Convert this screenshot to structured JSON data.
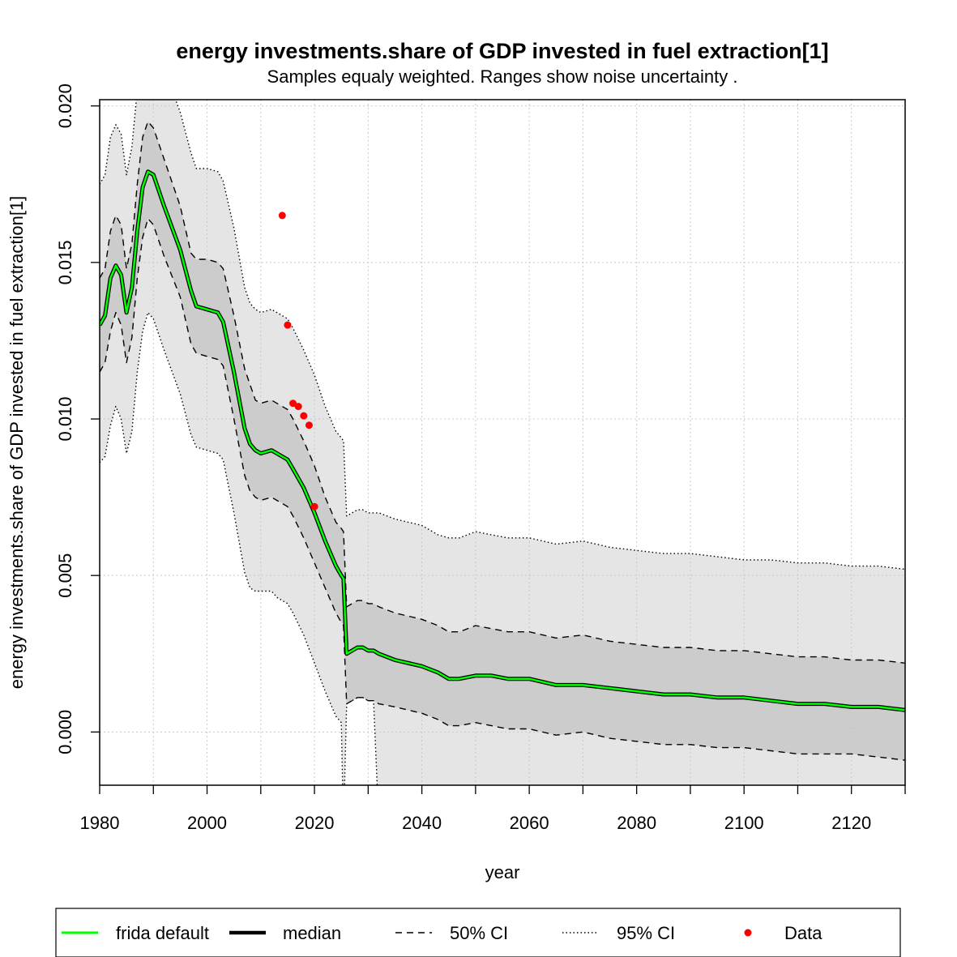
{
  "chart_data": {
    "type": "line",
    "title": "energy investments.share of GDP invested in fuel extraction[1]",
    "subtitle": "Samples equaly weighted. Ranges show  noise uncertainty .",
    "xlabel": "year",
    "ylabel": "energy investments.share of GDP invested in fuel extraction[1]",
    "xlim": [
      1980,
      2130
    ],
    "ylim": [
      -0.0017,
      0.0202
    ],
    "x_ticks": [
      "1980",
      "2000",
      "2020",
      "2040",
      "2060",
      "2080",
      "2100",
      "2120"
    ],
    "y_ticks": [
      "0.000",
      "0.005",
      "0.010",
      "0.015",
      "0.020"
    ],
    "grid": true,
    "legend": {
      "position": "bottom",
      "entries": [
        {
          "label": "frida default",
          "style": "solid",
          "color": "#00ff00"
        },
        {
          "label": "median",
          "style": "solid-thick",
          "color": "#000000"
        },
        {
          "label": "50% CI",
          "style": "dashed",
          "color": "#000000"
        },
        {
          "label": "95% CI",
          "style": "dotted",
          "color": "#000000"
        },
        {
          "label": "Data",
          "style": "point",
          "color": "#ff0000"
        }
      ]
    },
    "colors": {
      "frida_default": "#00ff00",
      "median": "#000000",
      "band_95": "#e5e5e5",
      "band_50": "#cccccc",
      "data_points": "#ff0000",
      "grid": "#c8c8c8"
    },
    "series": [
      {
        "name": "frida default",
        "x": [
          1980,
          1981,
          1982,
          1983,
          1984,
          1985,
          1986,
          1987,
          1988,
          1989,
          1990,
          1992,
          1995,
          1997,
          1998,
          2000,
          2002,
          2003,
          2005,
          2007,
          2008,
          2009,
          2010,
          2012,
          2013,
          2014,
          2015,
          2016,
          2018,
          2020,
          2022,
          2024,
          2025,
          2025.4,
          2026,
          2027,
          2028,
          2029,
          2030,
          2031,
          2032,
          2035,
          2040,
          2043,
          2045,
          2047,
          2050,
          2053,
          2056,
          2060,
          2065,
          2070,
          2075,
          2080,
          2085,
          2090,
          2095,
          2100,
          2105,
          2110,
          2115,
          2120,
          2125,
          2130
        ],
        "values": [
          0.013,
          0.0133,
          0.0145,
          0.0149,
          0.0146,
          0.0134,
          0.0142,
          0.016,
          0.0174,
          0.0179,
          0.0178,
          0.0168,
          0.0154,
          0.0141,
          0.0136,
          0.0135,
          0.0134,
          0.0131,
          0.0115,
          0.0097,
          0.0092,
          0.009,
          0.0089,
          0.009,
          0.0089,
          0.0088,
          0.0087,
          0.0084,
          0.0078,
          0.007,
          0.0061,
          0.0053,
          0.005,
          0.0049,
          0.0025,
          0.0026,
          0.0027,
          0.0027,
          0.0026,
          0.0026,
          0.0025,
          0.0023,
          0.0021,
          0.0019,
          0.0017,
          0.0017,
          0.0018,
          0.0018,
          0.0017,
          0.0017,
          0.0015,
          0.0015,
          0.0014,
          0.0013,
          0.0012,
          0.0012,
          0.0011,
          0.0011,
          0.001,
          0.0009,
          0.0009,
          0.0008,
          0.0008,
          0.0007
        ]
      },
      {
        "name": "median",
        "x": [
          1980,
          1981,
          1982,
          1983,
          1984,
          1985,
          1986,
          1987,
          1988,
          1989,
          1990,
          1992,
          1995,
          1997,
          1998,
          2000,
          2002,
          2003,
          2005,
          2007,
          2008,
          2009,
          2010,
          2012,
          2013,
          2014,
          2015,
          2016,
          2018,
          2020,
          2022,
          2024,
          2025,
          2025.4,
          2026,
          2027,
          2028,
          2029,
          2030,
          2031,
          2032,
          2035,
          2040,
          2043,
          2045,
          2047,
          2050,
          2053,
          2056,
          2060,
          2065,
          2070,
          2075,
          2080,
          2085,
          2090,
          2095,
          2100,
          2105,
          2110,
          2115,
          2120,
          2125,
          2130
        ],
        "values": [
          0.013,
          0.0133,
          0.0145,
          0.0149,
          0.0146,
          0.0134,
          0.0142,
          0.016,
          0.0174,
          0.0179,
          0.0178,
          0.0168,
          0.0154,
          0.0141,
          0.0136,
          0.0135,
          0.0134,
          0.0131,
          0.0115,
          0.0097,
          0.0092,
          0.009,
          0.0089,
          0.009,
          0.0089,
          0.0088,
          0.0087,
          0.0084,
          0.0078,
          0.007,
          0.0061,
          0.0053,
          0.005,
          0.0049,
          0.0025,
          0.0026,
          0.0027,
          0.0027,
          0.0026,
          0.0026,
          0.0025,
          0.0023,
          0.0021,
          0.0019,
          0.0017,
          0.0017,
          0.0018,
          0.0018,
          0.0017,
          0.0017,
          0.0015,
          0.0015,
          0.0014,
          0.0013,
          0.0012,
          0.0012,
          0.0011,
          0.0011,
          0.001,
          0.0009,
          0.0009,
          0.0008,
          0.0008,
          0.0007
        ]
      },
      {
        "name": "50% CI upper",
        "x": [
          1980,
          1981,
          1982,
          1983,
          1984,
          1985,
          1986,
          1987,
          1988,
          1989,
          1990,
          1992,
          1995,
          1997,
          1998,
          2000,
          2002,
          2003,
          2005,
          2007,
          2008,
          2009,
          2010,
          2012,
          2013,
          2014,
          2015,
          2016,
          2018,
          2020,
          2022,
          2024,
          2025,
          2025.4,
          2026,
          2027,
          2028,
          2029,
          2030,
          2031,
          2032,
          2035,
          2040,
          2043,
          2045,
          2047,
          2050,
          2053,
          2056,
          2060,
          2065,
          2070,
          2075,
          2080,
          2085,
          2090,
          2095,
          2100,
          2105,
          2110,
          2115,
          2120,
          2125,
          2130
        ],
        "values": [
          0.0145,
          0.0148,
          0.016,
          0.0165,
          0.0162,
          0.0148,
          0.0156,
          0.0175,
          0.019,
          0.0195,
          0.0193,
          0.0183,
          0.0168,
          0.0153,
          0.0151,
          0.0151,
          0.015,
          0.0148,
          0.0133,
          0.0116,
          0.0111,
          0.0106,
          0.0105,
          0.0106,
          0.0105,
          0.0104,
          0.0103,
          0.01,
          0.0093,
          0.0085,
          0.0075,
          0.0067,
          0.0065,
          0.0064,
          0.004,
          0.0041,
          0.0042,
          0.0042,
          0.0041,
          0.0041,
          0.004,
          0.0038,
          0.0036,
          0.0034,
          0.0032,
          0.0032,
          0.0034,
          0.0033,
          0.0032,
          0.0032,
          0.003,
          0.0031,
          0.0029,
          0.0028,
          0.0027,
          0.0027,
          0.0026,
          0.0026,
          0.0025,
          0.0024,
          0.0024,
          0.0023,
          0.0023,
          0.0022
        ]
      },
      {
        "name": "50% CI lower",
        "x": [
          1980,
          1981,
          1982,
          1983,
          1984,
          1985,
          1986,
          1987,
          1988,
          1989,
          1990,
          1992,
          1995,
          1997,
          1998,
          2000,
          2002,
          2003,
          2005,
          2007,
          2008,
          2009,
          2010,
          2012,
          2013,
          2014,
          2015,
          2016,
          2018,
          2020,
          2022,
          2024,
          2025,
          2025.4,
          2026,
          2027,
          2028,
          2029,
          2030,
          2031,
          2032,
          2035,
          2040,
          2043,
          2045,
          2047,
          2050,
          2053,
          2056,
          2060,
          2065,
          2070,
          2075,
          2080,
          2085,
          2090,
          2095,
          2100,
          2105,
          2110,
          2115,
          2120,
          2125,
          2130
        ],
        "values": [
          0.0115,
          0.0118,
          0.0128,
          0.0134,
          0.013,
          0.0118,
          0.0126,
          0.0145,
          0.0158,
          0.0164,
          0.0162,
          0.0152,
          0.0139,
          0.0124,
          0.0121,
          0.012,
          0.0119,
          0.0117,
          0.01,
          0.0082,
          0.0077,
          0.0075,
          0.0074,
          0.0075,
          0.0074,
          0.0073,
          0.0072,
          0.0069,
          0.0062,
          0.0054,
          0.0046,
          0.0038,
          0.0035,
          0.0034,
          0.0009,
          0.001,
          0.0011,
          0.0011,
          0.001,
          0.001,
          0.0009,
          0.0008,
          0.0006,
          0.0004,
          0.0002,
          0.0002,
          0.0003,
          0.0002,
          0.0001,
          0.0001,
          -0.0001,
          0.0,
          -0.0002,
          -0.0003,
          -0.0004,
          -0.0004,
          -0.0005,
          -0.0005,
          -0.0006,
          -0.0007,
          -0.0007,
          -0.0007,
          -0.0008,
          -0.0009
        ]
      },
      {
        "name": "95% CI upper",
        "x": [
          1980,
          1981,
          1982,
          1983,
          1984,
          1985,
          1986,
          1987,
          1988,
          1989,
          1990,
          1992,
          1995,
          1997,
          1998,
          2000,
          2002,
          2003,
          2005,
          2007,
          2008,
          2009,
          2010,
          2012,
          2013,
          2014,
          2015,
          2016,
          2018,
          2020,
          2022,
          2024,
          2025,
          2025.4,
          2026,
          2027,
          2028,
          2029,
          2030,
          2031,
          2032,
          2035,
          2040,
          2043,
          2045,
          2047,
          2050,
          2053,
          2056,
          2060,
          2065,
          2070,
          2075,
          2080,
          2085,
          2090,
          2095,
          2100,
          2105,
          2110,
          2115,
          2120,
          2125,
          2130
        ],
        "values": [
          0.0175,
          0.0178,
          0.019,
          0.0194,
          0.0191,
          0.0178,
          0.0187,
          0.0205,
          0.0218,
          0.0223,
          0.0222,
          0.0212,
          0.0198,
          0.0185,
          0.018,
          0.018,
          0.0179,
          0.0176,
          0.0161,
          0.0142,
          0.0137,
          0.0135,
          0.0134,
          0.0135,
          0.0134,
          0.0133,
          0.0132,
          0.0129,
          0.0122,
          0.0114,
          0.0104,
          0.0096,
          0.0094,
          0.0093,
          0.0069,
          0.007,
          0.0071,
          0.0071,
          0.007,
          0.007,
          0.007,
          0.0068,
          0.0066,
          0.0063,
          0.0062,
          0.0062,
          0.0064,
          0.0063,
          0.0062,
          0.0062,
          0.006,
          0.0061,
          0.0059,
          0.0058,
          0.0057,
          0.0057,
          0.0056,
          0.0055,
          0.0055,
          0.0054,
          0.0054,
          0.0053,
          0.0053,
          0.0052
        ]
      },
      {
        "name": "95% CI lower",
        "x": [
          1980,
          1981,
          1982,
          1983,
          1984,
          1985,
          1986,
          1987,
          1988,
          1989,
          1990,
          1992,
          1995,
          1997,
          1998,
          2000,
          2002,
          2003,
          2005,
          2007,
          2008,
          2009,
          2010,
          2012,
          2013,
          2014,
          2015,
          2016,
          2018,
          2020,
          2022,
          2024,
          2025,
          2025.4,
          2026,
          2027,
          2028,
          2029,
          2030,
          2031,
          2032,
          2035,
          2040,
          2043,
          2045,
          2047,
          2050,
          2053,
          2056,
          2060,
          2065,
          2070,
          2075,
          2080,
          2085,
          2090,
          2095,
          2100,
          2105,
          2110,
          2115,
          2120,
          2125,
          2130
        ],
        "values": [
          0.0086,
          0.0088,
          0.0098,
          0.0104,
          0.01,
          0.0089,
          0.0096,
          0.0115,
          0.0128,
          0.0134,
          0.0132,
          0.0122,
          0.0108,
          0.0095,
          0.0091,
          0.009,
          0.0089,
          0.0087,
          0.007,
          0.0051,
          0.0046,
          0.0045,
          0.0045,
          0.0045,
          0.0043,
          0.0042,
          0.0041,
          0.0038,
          0.0031,
          0.0022,
          0.0013,
          0.0005,
          0.0003,
          -0.003,
          0.0009,
          0.001,
          0.0011,
          0.0011,
          0.001,
          0.001,
          -0.003,
          -0.003,
          -0.003,
          -0.003,
          -0.003,
          -0.003,
          -0.003,
          -0.003,
          -0.003,
          -0.003,
          -0.003,
          -0.003,
          -0.003,
          -0.003,
          -0.003,
          -0.003,
          -0.003,
          -0.003,
          -0.003,
          -0.003,
          -0.003,
          -0.003,
          -0.003,
          -0.003
        ]
      }
    ],
    "data_points": {
      "name": "Data",
      "x": [
        2014,
        2015,
        2016,
        2017,
        2018,
        2019,
        2020
      ],
      "values": [
        0.0165,
        0.013,
        0.0105,
        0.0104,
        0.0101,
        0.0098,
        0.0072
      ]
    }
  }
}
